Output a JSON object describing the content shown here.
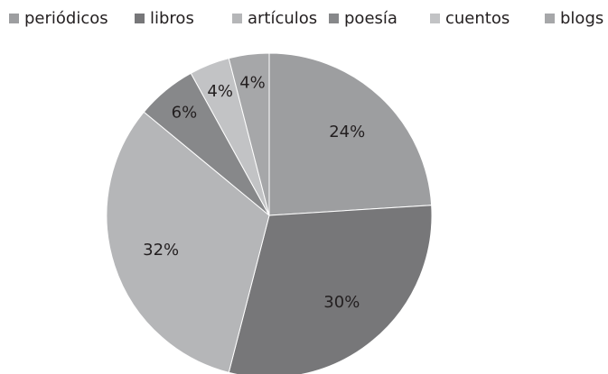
{
  "chart_data": {
    "type": "pie",
    "categories": [
      "periódicos",
      "libros",
      "artículos",
      "poesía",
      "cuentos",
      "blogs"
    ],
    "values": [
      24,
      30,
      32,
      6,
      4,
      4
    ],
    "value_labels": [
      "24%",
      "30%",
      "32%",
      "6%",
      "4%",
      "4%"
    ],
    "colors": [
      "#9d9ea0",
      "#777779",
      "#b5b6b8",
      "#87888a",
      "#c2c3c5",
      "#a6a7a9"
    ],
    "legend": "top"
  }
}
